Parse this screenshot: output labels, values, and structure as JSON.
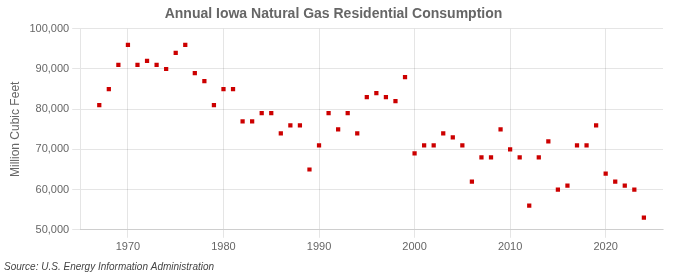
{
  "chart_data": {
    "type": "scatter",
    "title": "Annual Iowa Natural Gas Residential Consumption",
    "ylabel": "Million Cubic Feet",
    "annotation": "Source: U.S. Energy Information Administration",
    "x": [
      1967,
      1968,
      1969,
      1970,
      1971,
      1972,
      1973,
      1974,
      1975,
      1976,
      1977,
      1978,
      1979,
      1980,
      1981,
      1982,
      1983,
      1984,
      1985,
      1986,
      1987,
      1988,
      1989,
      1990,
      1991,
      1992,
      1993,
      1994,
      1995,
      1996,
      1997,
      1998,
      1999,
      2000,
      2001,
      2002,
      2003,
      2004,
      2005,
      2006,
      2007,
      2008,
      2009,
      2010,
      2011,
      2012,
      2013,
      2014,
      2015,
      2016,
      2017,
      2018,
      2019,
      2020,
      2021,
      2022,
      2023,
      2024
    ],
    "values": [
      81000,
      85000,
      91000,
      96000,
      91000,
      92000,
      91000,
      90000,
      94000,
      96000,
      89000,
      87000,
      81000,
      85000,
      85000,
      77000,
      77000,
      79000,
      79000,
      74000,
      76000,
      76000,
      65000,
      71000,
      79000,
      75000,
      79000,
      74000,
      83000,
      84000,
      83000,
      82000,
      88000,
      69000,
      71000,
      71000,
      74000,
      73000,
      71000,
      62000,
      68000,
      68000,
      75000,
      70000,
      68000,
      56000,
      68000,
      72000,
      60000,
      61000,
      71000,
      71000,
      76000,
      64000,
      62000,
      61000,
      60000,
      53000
    ],
    "color": "#cc0000",
    "marker": "square",
    "xlim": [
      1965,
      2026
    ],
    "xticks": [
      1970,
      1980,
      1990,
      2000,
      2010,
      2020
    ],
    "ylim": [
      50000,
      100000
    ],
    "yticks": [
      {
        "value": 50000,
        "label": "50,000"
      },
      {
        "value": 60000,
        "label": "60,000"
      },
      {
        "value": 70000,
        "label": "70,000"
      },
      {
        "value": 80000,
        "label": "80,000"
      },
      {
        "value": 90000,
        "label": "90,000"
      },
      {
        "value": 100000,
        "label": "100,000"
      }
    ],
    "grid": true
  }
}
